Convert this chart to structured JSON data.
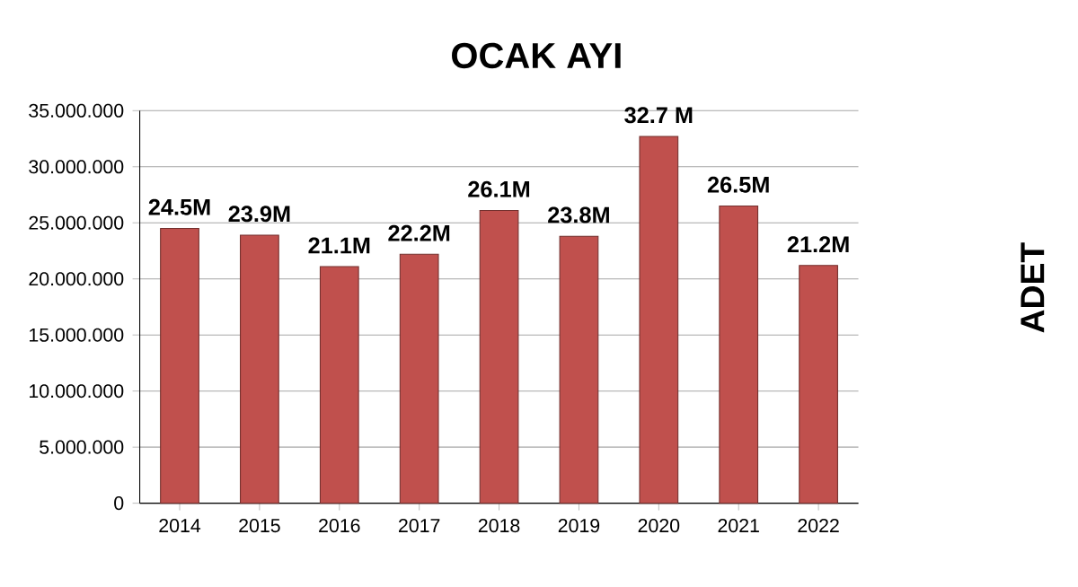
{
  "chart_data": {
    "type": "bar",
    "title": "OCAK AYI",
    "ylabel": "ADET",
    "categories": [
      "2014",
      "2015",
      "2016",
      "2017",
      "2018",
      "2019",
      "2020",
      "2021",
      "2022"
    ],
    "values": [
      24500000,
      23900000,
      21100000,
      22200000,
      26100000,
      23800000,
      32700000,
      26500000,
      21200000
    ],
    "value_labels": [
      "24.5M",
      "23.9M",
      "21.1M",
      "22.2M",
      "26.1M",
      "23.8M",
      "32.7 M",
      "26.5M",
      "21.2M"
    ],
    "color": "#c0504d",
    "ylim": [
      0,
      35000000
    ],
    "yticks": [
      0,
      {
        "value": 5000000,
        "label": "5.000.000"
      },
      {
        "value": 10000000,
        "label": "10.000.000"
      },
      {
        "value": 15000000,
        "label": "15.000.000"
      },
      {
        "value": 20000000,
        "label": "20.000.000"
      },
      {
        "value": 25000000,
        "label": "25.000.000"
      },
      {
        "value": 30000000,
        "label": "30.000.000"
      },
      {
        "value": 35000000,
        "label": "35.000.000"
      }
    ],
    "grid": "y"
  }
}
